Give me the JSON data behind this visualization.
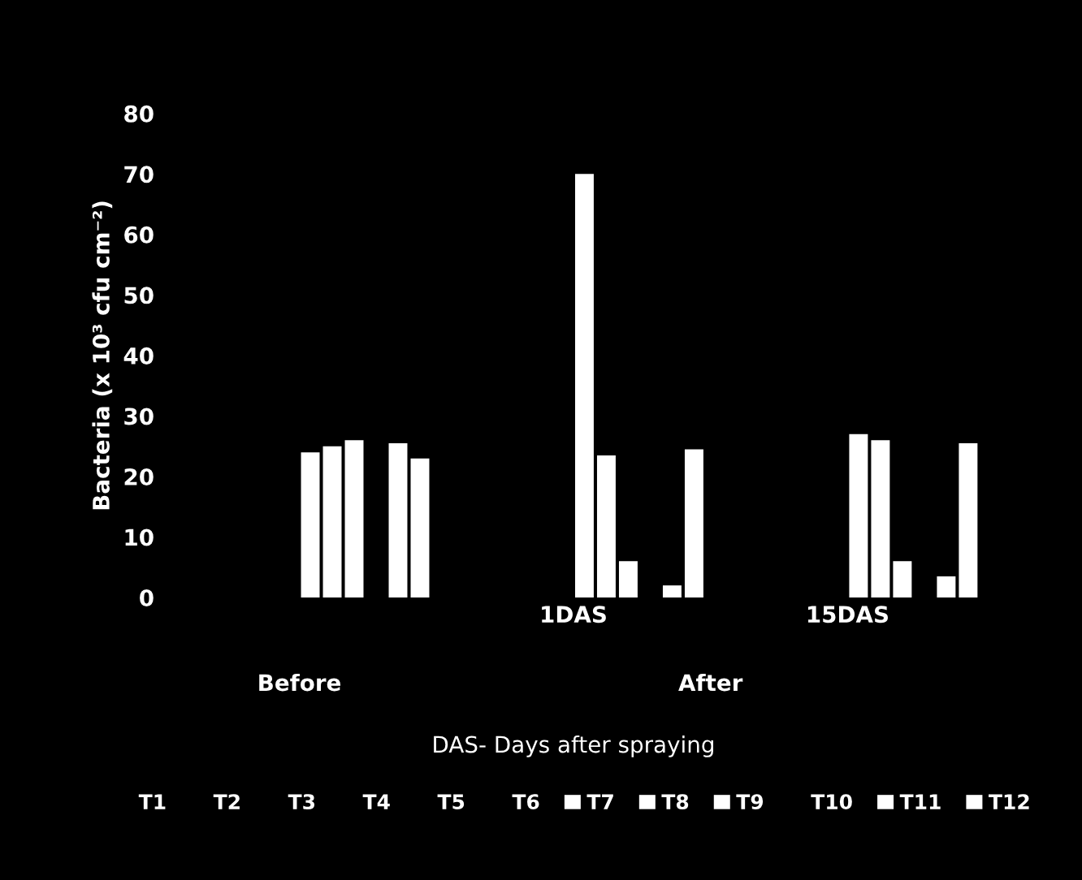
{
  "chart_data": {
    "type": "bar",
    "ylabel": "Bacteria (x 10³ cfu cm⁻²)",
    "xlabel": "DAS- Days after spraying",
    "categories": [
      null,
      "1DAS",
      "15DAS"
    ],
    "annotations": [
      "Before",
      "After"
    ],
    "ylim": [
      0,
      80
    ],
    "yticks": [
      0,
      10,
      20,
      30,
      40,
      50,
      60,
      70,
      80
    ],
    "grid": false,
    "legend": "bottom",
    "series": [
      {
        "name": "T1",
        "values": [
          null,
          null,
          null
        ]
      },
      {
        "name": "T2",
        "values": [
          null,
          null,
          null
        ]
      },
      {
        "name": "T3",
        "values": [
          null,
          null,
          null
        ]
      },
      {
        "name": "T4",
        "values": [
          null,
          null,
          null
        ]
      },
      {
        "name": "T5",
        "values": [
          null,
          null,
          null
        ]
      },
      {
        "name": "T6",
        "values": [
          null,
          null,
          null
        ]
      },
      {
        "name": "T7",
        "color": "#ffffff",
        "values": [
          24,
          70,
          27
        ]
      },
      {
        "name": "T8",
        "color": "#ffffff",
        "values": [
          25,
          23.5,
          26
        ]
      },
      {
        "name": "T9",
        "color": "#ffffff",
        "values": [
          26,
          6,
          6
        ]
      },
      {
        "name": "T10",
        "values": [
          null,
          null,
          null
        ]
      },
      {
        "name": "T11",
        "color": "#ffffff",
        "values": [
          25.5,
          2,
          3.5
        ]
      },
      {
        "name": "T12",
        "color": "#ffffff",
        "values": [
          23,
          24.5,
          25.5
        ]
      }
    ]
  }
}
